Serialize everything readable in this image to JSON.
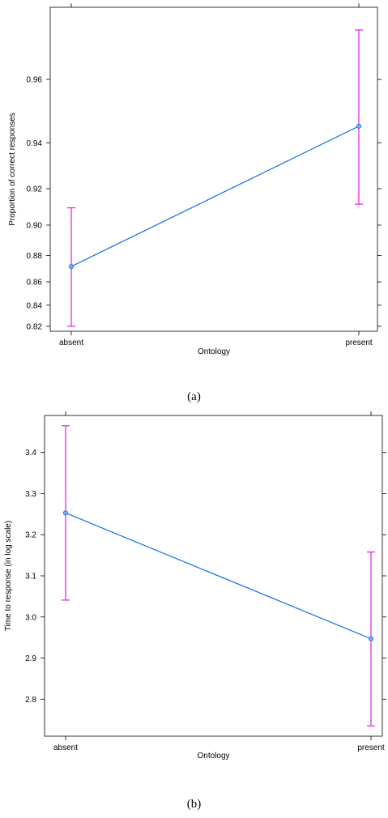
{
  "chart_data": [
    {
      "panel": "(a)",
      "type": "line",
      "xlabel": "Ontology",
      "ylabel": "Proportion of correct responses",
      "categories": [
        "absent",
        "present"
      ],
      "values": [
        0.872,
        0.946
      ],
      "lower": [
        0.82,
        0.912
      ],
      "upper": [
        0.91,
        0.971
      ],
      "yticks": [
        "0.82",
        "0.84",
        "0.86",
        "0.88",
        "0.90",
        "0.92",
        "0.94",
        "0.96"
      ],
      "ylim": [
        0.815,
        0.975
      ],
      "scale": "logit",
      "colors": {
        "line": "#1f78e6",
        "error": "#e619e6"
      }
    },
    {
      "panel": "(b)",
      "type": "line",
      "xlabel": "Ontology",
      "ylabel": "Time to response (in log scale)",
      "categories": [
        "absent",
        "present"
      ],
      "values": [
        3.253,
        2.947
      ],
      "lower": [
        3.041,
        2.735
      ],
      "upper": [
        3.465,
        3.158
      ],
      "yticks": [
        "2.8",
        "2.9",
        "3.0",
        "3.1",
        "3.2",
        "3.3",
        "3.4"
      ],
      "ylim": [
        2.71,
        3.49
      ],
      "scale": "linear",
      "colors": {
        "line": "#1f78e6",
        "error": "#e619e6"
      }
    }
  ]
}
